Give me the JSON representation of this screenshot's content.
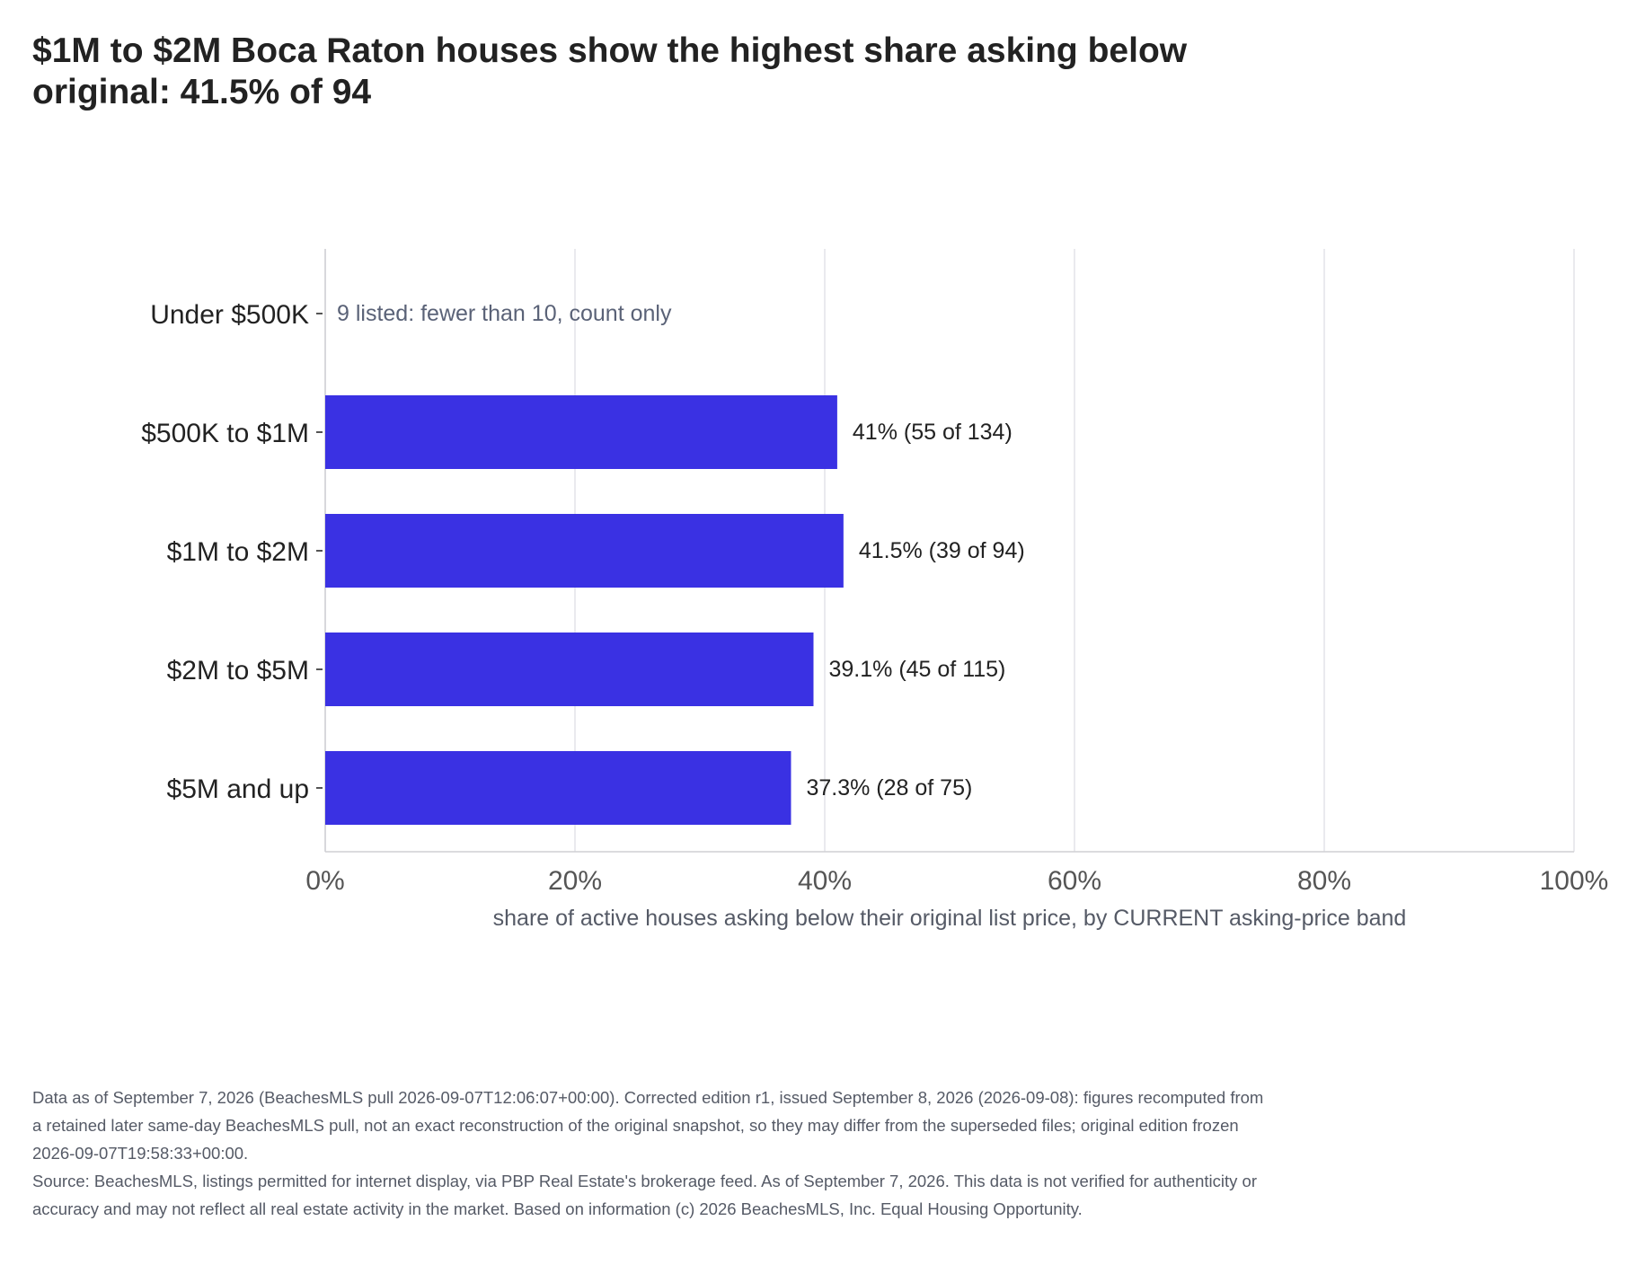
{
  "title": "$1M to $2M Boca Raton houses show the highest share asking below original: 41.5% of 94",
  "chart_data": {
    "type": "bar",
    "orientation": "horizontal",
    "categories": [
      "Under $500K",
      "$500K to $1M",
      "$1M to $2M",
      "$2M to $5M",
      "$5M and up"
    ],
    "values": [
      null,
      41,
      41.5,
      39.1,
      37.3
    ],
    "data_labels": [
      "9 listed: fewer than 10, count only",
      "41%  (55 of 134)",
      "41.5%  (39 of 94)",
      "39.1%  (45 of 115)",
      "37.3%  (28 of 75)"
    ],
    "xlabel": "share of active houses asking below their original list price, by CURRENT asking-price band",
    "xlim": [
      0,
      100
    ],
    "xticks": [
      0,
      20,
      40,
      60,
      80,
      100
    ],
    "xtick_labels": [
      "0%",
      "20%",
      "40%",
      "60%",
      "80%",
      "100%"
    ],
    "grid": "vertical",
    "colors": {
      "bar": "#3a31e3",
      "note": "#5a6277",
      "grid": "#e3e3e8"
    }
  },
  "footnote": {
    "lines": [
      "Data as of September 7, 2026 (BeachesMLS pull 2026-09-07T12:06:07+00:00). Corrected edition r1, issued September 8, 2026 (2026-09-08): figures recomputed from a retained later same-day BeachesMLS pull, not an exact reconstruction of the original snapshot, so they may differ from the superseded files; original edition frozen 2026-09-07T19:58:33+00:00.",
      "Source: BeachesMLS, listings permitted for internet display, via PBP Real Estate's brokerage feed. As of September 7, 2026. This data is not verified for authenticity or accuracy and may not reflect all real estate activity in the market. Based on information (c) 2026 BeachesMLS, Inc. Equal Housing Opportunity."
    ]
  }
}
